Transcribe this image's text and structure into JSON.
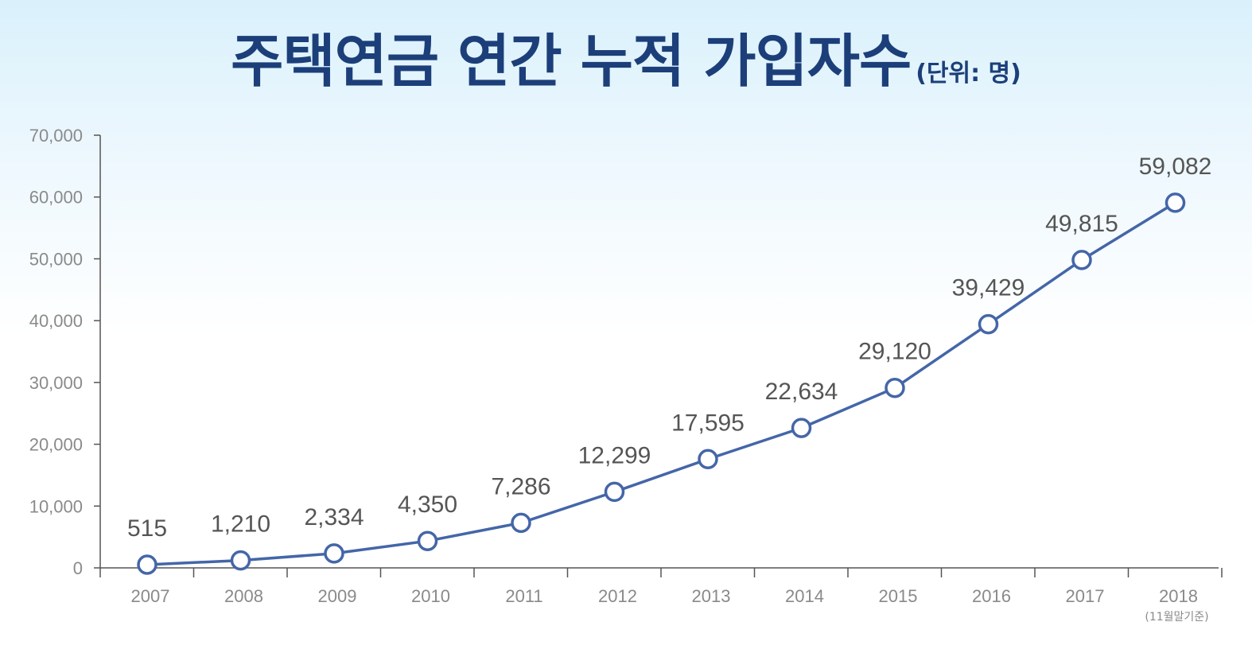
{
  "title": "주택연금 연간 누적 가입자수",
  "unit": "(단위: 명)",
  "x_note": "(11월말기준)",
  "colors": {
    "line": "#4466a8",
    "title": "#1c3f7a",
    "axis": "#555555"
  },
  "chart_data": {
    "type": "line",
    "categories": [
      "2007",
      "2008",
      "2009",
      "2010",
      "2011",
      "2012",
      "2013",
      "2014",
      "2015",
      "2016",
      "2017",
      "2018"
    ],
    "values": [
      515,
      1210,
      2334,
      4350,
      7286,
      12299,
      17595,
      22634,
      29120,
      39429,
      49815,
      59082
    ],
    "value_labels": [
      "515",
      "1,210",
      "2,334",
      "4,350",
      "7,286",
      "12,299",
      "17,595",
      "22,634",
      "29,120",
      "39,429",
      "49,815",
      "59,082"
    ],
    "y_ticks": [
      0,
      10000,
      20000,
      30000,
      40000,
      50000,
      60000,
      70000
    ],
    "y_tick_labels": [
      "0",
      "10,000",
      "20,000",
      "30,000",
      "40,000",
      "50,000",
      "60,000",
      "70,000"
    ],
    "ylim": [
      0,
      70000
    ],
    "grid": false,
    "legend": "none"
  }
}
